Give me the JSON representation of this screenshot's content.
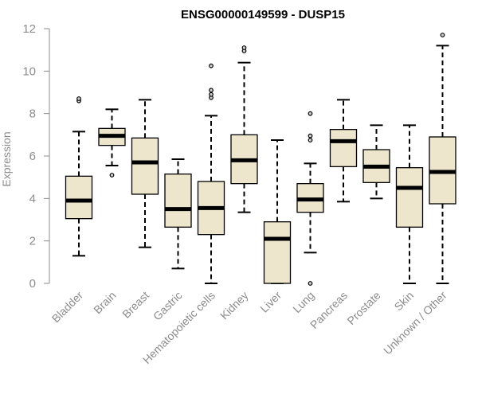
{
  "chart_data": {
    "type": "boxplot",
    "title": "ENSG00000149599 - DUSP15",
    "xlabel": "",
    "ylabel": "Expression",
    "ylim": [
      0,
      12
    ],
    "yticks": [
      0,
      2,
      4,
      6,
      8,
      10,
      12
    ],
    "grid": false,
    "box_fill": "#ede6cc",
    "outlier_fill": "#cfcfcf",
    "categories": [
      "Bladder",
      "Brain",
      "Breast",
      "Gastric",
      "Hematopoietic cells",
      "Kidney",
      "Liver",
      "Lung",
      "Pancreas",
      "Prostate",
      "Skin",
      "Unknown / Other"
    ],
    "boxes": [
      {
        "name": "Bladder",
        "whisker_low": 1.3,
        "q1": 3.05,
        "median": 3.9,
        "q3": 5.05,
        "whisker_high": 7.15,
        "outliers": [
          8.6,
          8.7
        ]
      },
      {
        "name": "Brain",
        "whisker_low": 5.55,
        "q1": 6.5,
        "median": 6.95,
        "q3": 7.3,
        "whisker_high": 8.2,
        "outliers": [
          5.1
        ]
      },
      {
        "name": "Breast",
        "whisker_low": 1.7,
        "q1": 4.2,
        "median": 5.7,
        "q3": 6.85,
        "whisker_high": 8.65,
        "outliers": []
      },
      {
        "name": "Gastric",
        "whisker_low": 0.7,
        "q1": 2.65,
        "median": 3.5,
        "q3": 5.15,
        "whisker_high": 5.85,
        "outliers": []
      },
      {
        "name": "Hematopoietic cells",
        "whisker_low": 0.0,
        "q1": 2.3,
        "median": 3.55,
        "q3": 4.8,
        "whisker_high": 7.9,
        "outliers": [
          8.75,
          8.9,
          9.1,
          10.25
        ]
      },
      {
        "name": "Kidney",
        "whisker_low": 3.35,
        "q1": 4.7,
        "median": 5.8,
        "q3": 7.0,
        "whisker_high": 10.4,
        "outliers": [
          10.95,
          11.1
        ]
      },
      {
        "name": "Liver",
        "whisker_low": 0.0,
        "q1": 0.0,
        "median": 2.1,
        "q3": 2.9,
        "whisker_high": 6.75,
        "outliers": []
      },
      {
        "name": "Lung",
        "whisker_low": 1.45,
        "q1": 3.35,
        "median": 3.95,
        "q3": 4.7,
        "whisker_high": 5.65,
        "outliers": [
          0.0,
          6.75,
          6.95,
          8.0
        ]
      },
      {
        "name": "Pancreas",
        "whisker_low": 3.85,
        "q1": 5.5,
        "median": 6.7,
        "q3": 7.25,
        "whisker_high": 8.65,
        "outliers": []
      },
      {
        "name": "Prostate",
        "whisker_low": 4.0,
        "q1": 4.75,
        "median": 5.5,
        "q3": 6.3,
        "whisker_high": 7.45,
        "outliers": []
      },
      {
        "name": "Skin",
        "whisker_low": 0.0,
        "q1": 2.65,
        "median": 4.5,
        "q3": 5.45,
        "whisker_high": 7.45,
        "outliers": []
      },
      {
        "name": "Unknown / Other",
        "whisker_low": 0.0,
        "q1": 3.75,
        "median": 5.25,
        "q3": 6.9,
        "whisker_high": 11.2,
        "outliers": [
          11.7
        ]
      }
    ]
  }
}
